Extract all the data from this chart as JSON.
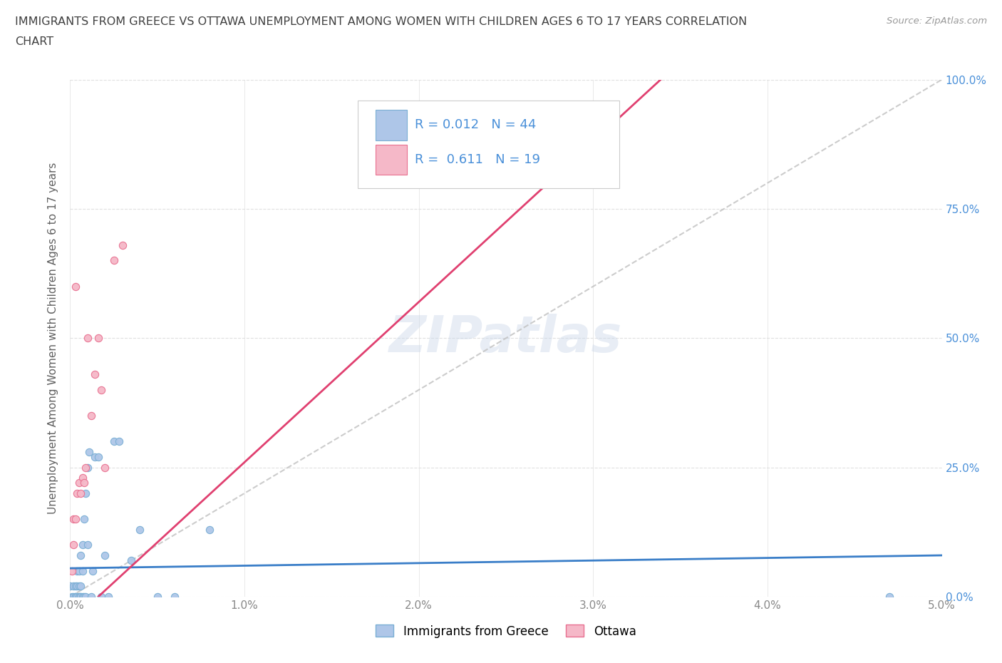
{
  "title_line1": "IMMIGRANTS FROM GREECE VS OTTAWA UNEMPLOYMENT AMONG WOMEN WITH CHILDREN AGES 6 TO 17 YEARS CORRELATION",
  "title_line2": "CHART",
  "source": "Source: ZipAtlas.com",
  "xlabel_bottom": "Immigrants from Greece",
  "ylabel": "Unemployment Among Women with Children Ages 6 to 17 years",
  "watermark": "ZIPatlas",
  "xlim": [
    0.0,
    0.05
  ],
  "ylim": [
    0.0,
    1.0
  ],
  "xticks": [
    0.0,
    0.01,
    0.02,
    0.03,
    0.04,
    0.05
  ],
  "yticks": [
    0.0,
    0.25,
    0.5,
    0.75,
    1.0
  ],
  "xtick_labels": [
    "0.0%",
    "1.0%",
    "2.0%",
    "3.0%",
    "4.0%",
    "5.0%"
  ],
  "ytick_labels": [
    "0.0%",
    "25.0%",
    "50.0%",
    "75.0%",
    "100.0%"
  ],
  "blue_color": "#aec6e8",
  "pink_color": "#f5b8c8",
  "blue_edge": "#7aafd4",
  "pink_edge": "#e87090",
  "blue_line_color": "#3a7ec8",
  "pink_line_color": "#e04070",
  "R_blue": 0.012,
  "N_blue": 44,
  "R_pink": 0.611,
  "N_pink": 19,
  "legend_color": "#4a90d9",
  "blue_scatter_x": [
    0.0,
    0.0001,
    0.0002,
    0.0002,
    0.0003,
    0.0003,
    0.0003,
    0.0003,
    0.0004,
    0.0004,
    0.0004,
    0.0005,
    0.0005,
    0.0005,
    0.0005,
    0.0006,
    0.0006,
    0.0006,
    0.0006,
    0.0007,
    0.0007,
    0.0007,
    0.0008,
    0.0008,
    0.0009,
    0.0009,
    0.001,
    0.001,
    0.0011,
    0.0012,
    0.0013,
    0.0014,
    0.0016,
    0.0018,
    0.002,
    0.0022,
    0.0025,
    0.0028,
    0.0035,
    0.004,
    0.005,
    0.006,
    0.008,
    0.047
  ],
  "blue_scatter_y": [
    0.02,
    0.0,
    0.0,
    0.02,
    0.0,
    0.0,
    0.0,
    0.02,
    0.0,
    0.02,
    0.05,
    0.0,
    0.0,
    0.02,
    0.05,
    0.0,
    0.0,
    0.02,
    0.08,
    0.0,
    0.05,
    0.1,
    0.0,
    0.15,
    0.0,
    0.2,
    0.1,
    0.25,
    0.28,
    0.0,
    0.05,
    0.27,
    0.27,
    0.0,
    0.08,
    0.0,
    0.3,
    0.3,
    0.07,
    0.13,
    0.0,
    0.0,
    0.13,
    0.0
  ],
  "pink_scatter_x": [
    0.0001,
    0.0002,
    0.0002,
    0.0003,
    0.0003,
    0.0004,
    0.0005,
    0.0006,
    0.0007,
    0.0008,
    0.0009,
    0.001,
    0.0012,
    0.0014,
    0.0016,
    0.0018,
    0.002,
    0.0025,
    0.003
  ],
  "pink_scatter_y": [
    0.05,
    0.1,
    0.15,
    0.15,
    0.6,
    0.2,
    0.22,
    0.2,
    0.23,
    0.22,
    0.25,
    0.5,
    0.35,
    0.43,
    0.5,
    0.4,
    0.25,
    0.65,
    0.68
  ],
  "background_color": "#ffffff",
  "grid_color": "#e0e0e0",
  "title_color": "#404040",
  "axis_label_color": "#606060",
  "tick_color_right": "#4a90d9",
  "tick_color_bottom": "#888888"
}
